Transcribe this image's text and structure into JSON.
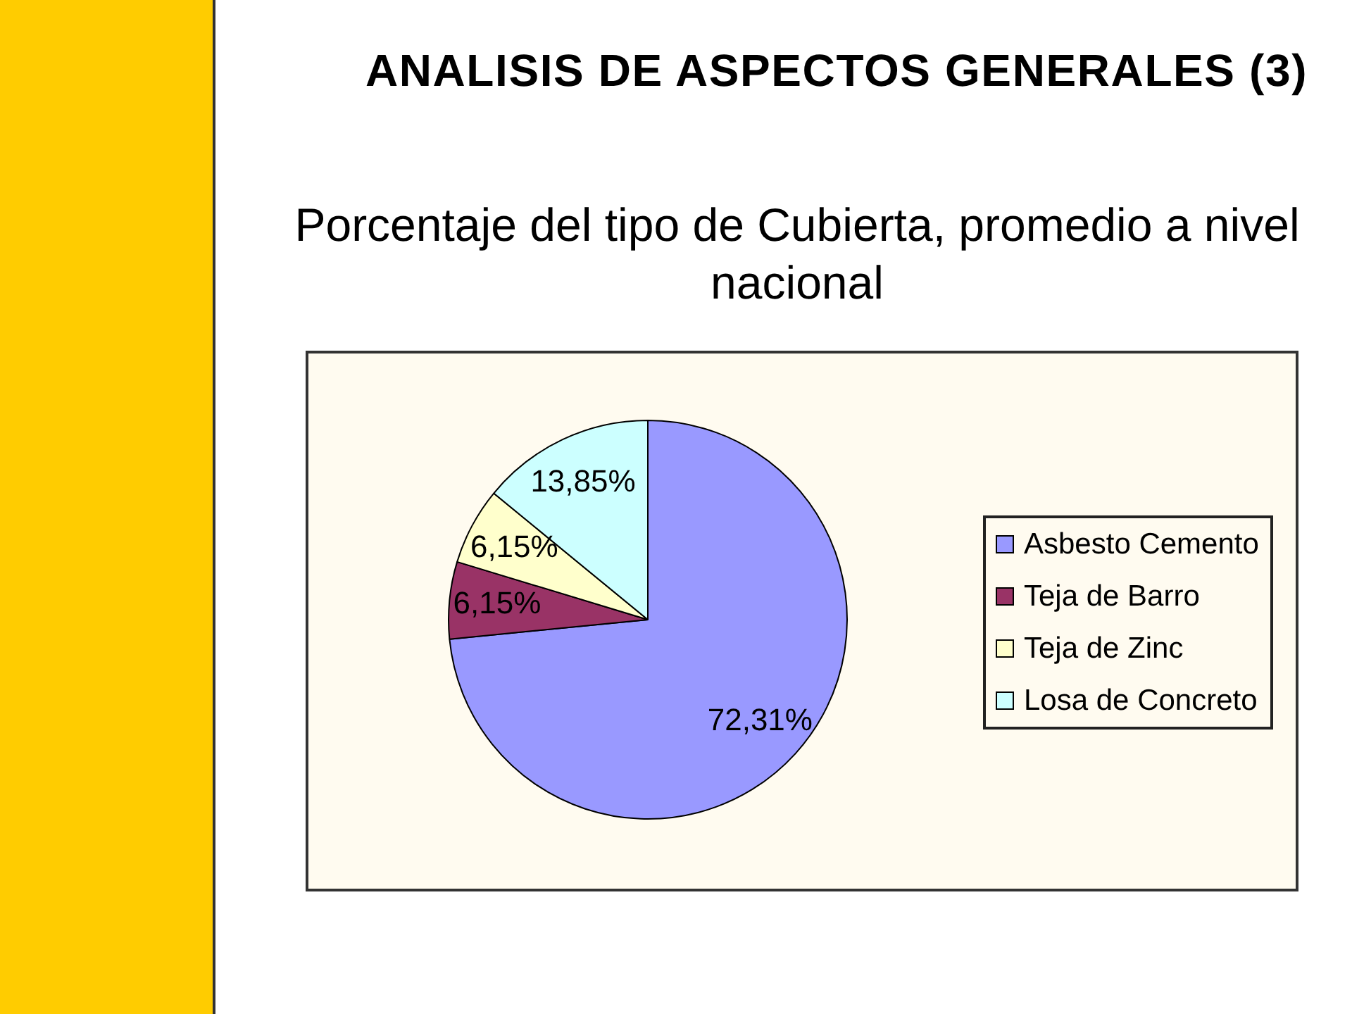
{
  "chart_data": {
    "type": "pie",
    "title": "ANALISIS DE ASPECTOS GENERALES (3)",
    "subtitle": "Porcentaje del tipo de Cubierta, promedio a nivel nacional",
    "categories": [
      "Asbesto Cemento",
      "Teja de Barro",
      "Teja de Zinc",
      "Losa de Concreto"
    ],
    "values": [
      72.31,
      6.15,
      6.15,
      13.85
    ],
    "colors": [
      "#9999ff",
      "#993366",
      "#ffffcc",
      "#ccffff"
    ],
    "value_labels": [
      "72,31%",
      "6,15%",
      "6,15%",
      "13,85%"
    ],
    "legend": "right"
  }
}
